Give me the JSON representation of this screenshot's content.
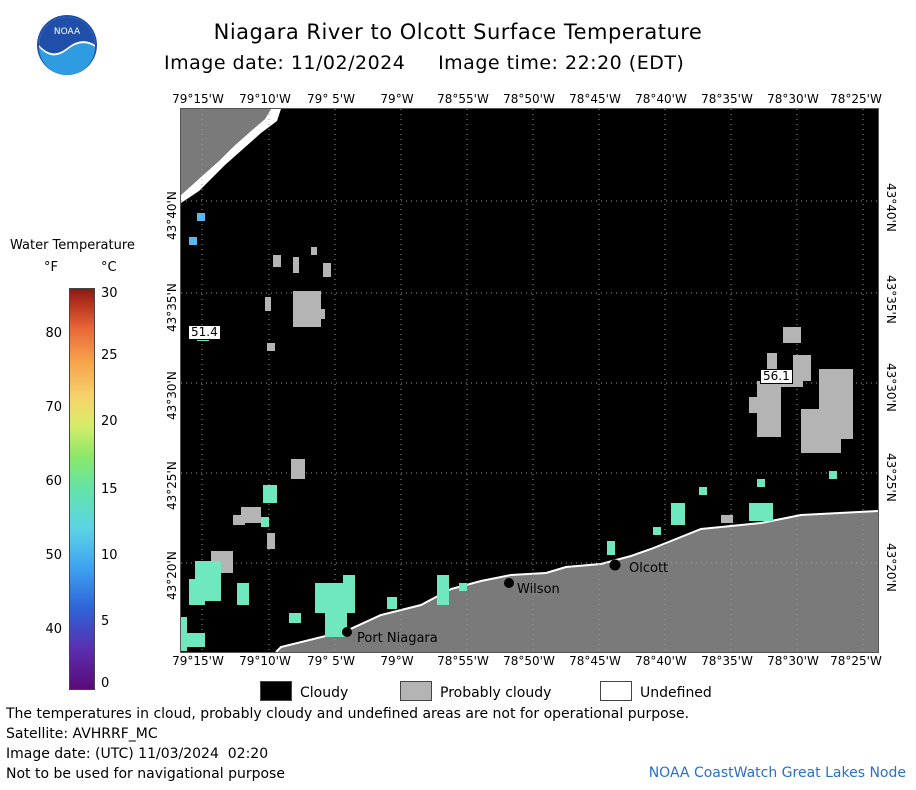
{
  "header": {
    "logo_text": "NOAA",
    "title": "Niagara River to Olcott Surface Temperature",
    "image_date_label": "Image date:",
    "image_date": "11/02/2024",
    "image_time_label": "Image time:",
    "image_time": "22:20 (EDT)"
  },
  "map": {
    "lon_labels": [
      "79°15'W",
      "79°10'W",
      "79° 5'W",
      "79°W",
      "78°55'W",
      "78°50'W",
      "78°45'W",
      "78°40'W",
      "78°35'W",
      "78°30'W",
      "78°25'W"
    ],
    "lat_labels": [
      "43°40'N",
      "43°35'N",
      "43°30'N",
      "43°25'N",
      "43°20'N"
    ],
    "places": [
      {
        "name": "Olcott"
      },
      {
        "name": "Wilson"
      },
      {
        "name": "Port Niagara"
      }
    ],
    "temperature_labels": [
      "51.4",
      "56.1"
    ],
    "colors": {
      "cloudy": "#000000",
      "probably_cloudy": "#b4b4b4",
      "land": "#7a7a7a",
      "undefined": "#ffffff",
      "water_cold": "#6fe8c0",
      "water_mid": "#5ab8f0"
    }
  },
  "legend": {
    "title": "Water Temperature",
    "unit_f": "°F",
    "unit_c": "°C",
    "ticks_f": [
      "80",
      "70",
      "60",
      "50",
      "40"
    ],
    "ticks_c": [
      "30",
      "25",
      "20",
      "15",
      "10",
      "5",
      "0"
    ],
    "keys": [
      {
        "label": "Cloudy",
        "color": "#000000"
      },
      {
        "label": "Probably cloudy",
        "color": "#b4b4b4"
      },
      {
        "label": "Undefined",
        "color": "#ffffff"
      }
    ]
  },
  "footer": {
    "note": "The temperatures in cloud, probably cloudy and undefined areas are not for operational purpose.",
    "satellite": "Satellite: AVHRRF_MC",
    "utc_date": "Image date: (UTC) 11/03/2024  02:20",
    "nav_warning": "Not to be used for navigational purpose",
    "credit": "NOAA CoastWatch Great Lakes Node"
  }
}
